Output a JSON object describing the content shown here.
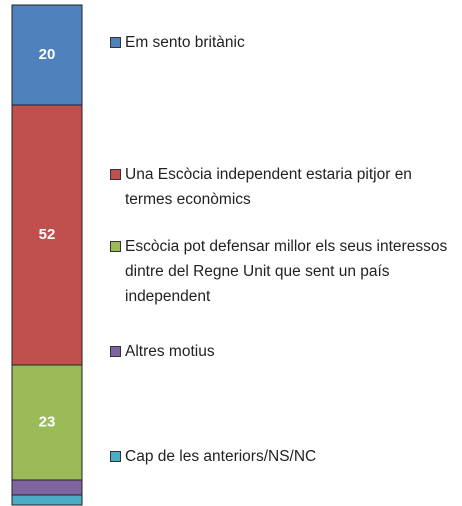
{
  "chart_data": {
    "type": "stacked-bar",
    "ylim": [
      0,
      100
    ],
    "series": [
      {
        "name": "Em sento britànic",
        "color": "#4f81bd",
        "values": [
          20
        ]
      },
      {
        "name": "Una Escòcia independent estaria pitjor en termes econòmics",
        "color": "#c0504d",
        "values": [
          52
        ]
      },
      {
        "name": "Escòcia pot defensar millor els seus interessos dintre del Regne Unit que sent un país independent",
        "color": "#9bbb59",
        "values": [
          23
        ]
      },
      {
        "name": "Altres motius",
        "color": "#8064a2",
        "values": [
          3
        ]
      },
      {
        "name": "Cap de les anteriors/NS/NC",
        "color": "#4bacc6",
        "values": [
          2
        ]
      }
    ]
  }
}
